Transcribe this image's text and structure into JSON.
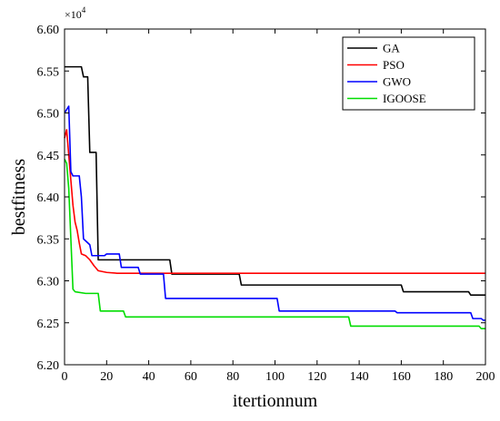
{
  "chart_data": {
    "type": "line",
    "title": "",
    "xlabel": "itertionnum",
    "ylabel": "bestfitness",
    "y_multiplier_base": "×10",
    "y_multiplier_exp": "4",
    "xlim": [
      0,
      200
    ],
    "ylim": [
      6.2,
      6.6
    ],
    "xticks": [
      0,
      20,
      40,
      60,
      80,
      100,
      120,
      140,
      160,
      180,
      200
    ],
    "yticks": [
      "6.20",
      "6.25",
      "6.30",
      "6.35",
      "6.40",
      "6.45",
      "6.50",
      "6.55",
      "6.60"
    ],
    "grid": false,
    "legend_position": "top-right",
    "series": [
      {
        "name": "GA",
        "color": "#000000",
        "points": [
          [
            0,
            6.555
          ],
          [
            8,
            6.555
          ],
          [
            9,
            6.543
          ],
          [
            11,
            6.543
          ],
          [
            12,
            6.453
          ],
          [
            15,
            6.453
          ],
          [
            16,
            6.325
          ],
          [
            50,
            6.325
          ],
          [
            51,
            6.308
          ],
          [
            83,
            6.308
          ],
          [
            84,
            6.295
          ],
          [
            160,
            6.295
          ],
          [
            161,
            6.287
          ],
          [
            192,
            6.287
          ],
          [
            193,
            6.283
          ],
          [
            200,
            6.283
          ]
        ]
      },
      {
        "name": "PSO",
        "color": "#ff0000",
        "points": [
          [
            0,
            6.47
          ],
          [
            1,
            6.48
          ],
          [
            2,
            6.45
          ],
          [
            3,
            6.42
          ],
          [
            4,
            6.39
          ],
          [
            5,
            6.37
          ],
          [
            6,
            6.36
          ],
          [
            7,
            6.345
          ],
          [
            8,
            6.332
          ],
          [
            10,
            6.33
          ],
          [
            12,
            6.325
          ],
          [
            14,
            6.318
          ],
          [
            16,
            6.312
          ],
          [
            20,
            6.31
          ],
          [
            25,
            6.309
          ],
          [
            200,
            6.309
          ]
        ]
      },
      {
        "name": "GWO",
        "color": "#0000ff",
        "points": [
          [
            0,
            6.5
          ],
          [
            2,
            6.508
          ],
          [
            3,
            6.43
          ],
          [
            4,
            6.425
          ],
          [
            7,
            6.425
          ],
          [
            8,
            6.4
          ],
          [
            9,
            6.35
          ],
          [
            12,
            6.343
          ],
          [
            13,
            6.33
          ],
          [
            19,
            6.33
          ],
          [
            20,
            6.332
          ],
          [
            26,
            6.332
          ],
          [
            27,
            6.316
          ],
          [
            35,
            6.316
          ],
          [
            36,
            6.308
          ],
          [
            47,
            6.308
          ],
          [
            48,
            6.279
          ],
          [
            101,
            6.279
          ],
          [
            102,
            6.264
          ],
          [
            157,
            6.264
          ],
          [
            158,
            6.262
          ],
          [
            193,
            6.262
          ],
          [
            194,
            6.255
          ],
          [
            198,
            6.255
          ],
          [
            199,
            6.253
          ],
          [
            200,
            6.253
          ]
        ]
      },
      {
        "name": "IGOOSE",
        "color": "#00dd00",
        "points": [
          [
            0,
            6.445
          ],
          [
            1,
            6.44
          ],
          [
            2,
            6.41
          ],
          [
            3,
            6.35
          ],
          [
            4,
            6.29
          ],
          [
            5,
            6.287
          ],
          [
            10,
            6.285
          ],
          [
            16,
            6.285
          ],
          [
            17,
            6.264
          ],
          [
            28,
            6.264
          ],
          [
            29,
            6.257
          ],
          [
            135,
            6.257
          ],
          [
            136,
            6.246
          ],
          [
            197,
            6.246
          ],
          [
            198,
            6.243
          ],
          [
            200,
            6.243
          ]
        ]
      }
    ]
  }
}
